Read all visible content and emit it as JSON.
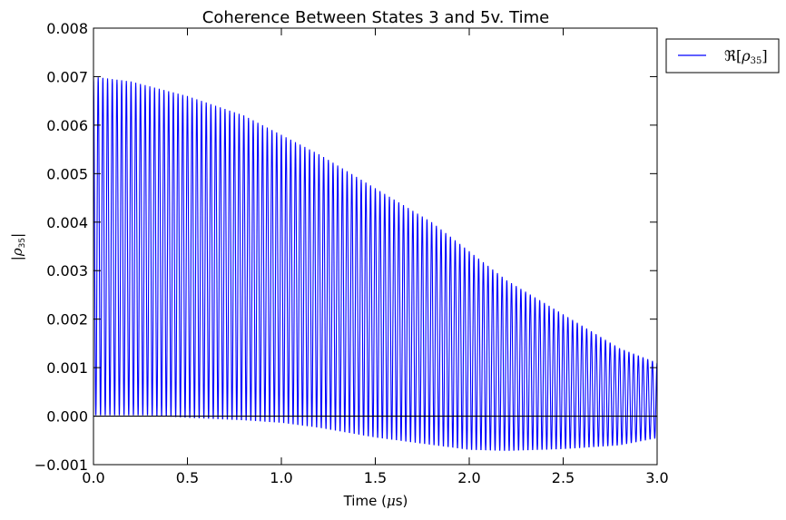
{
  "chart_data": {
    "type": "line",
    "title": "Coherence Between States 3 and 5v. Time",
    "xlabel": "Time (μs)",
    "ylabel": "|ρ35|",
    "xlim": [
      0.0,
      3.0
    ],
    "ylim": [
      -0.001,
      0.008
    ],
    "xticks": [
      0.0,
      0.5,
      1.0,
      1.5,
      2.0,
      2.5,
      3.0
    ],
    "xtick_labels": [
      "0.0",
      "0.5",
      "1.0",
      "1.5",
      "2.0",
      "2.5",
      "3.0"
    ],
    "yticks": [
      -0.001,
      0.0,
      0.001,
      0.002,
      0.003,
      0.004,
      0.005,
      0.006,
      0.007,
      0.008
    ],
    "ytick_labels": [
      "−0.001",
      "0.000",
      "0.001",
      "0.002",
      "0.003",
      "0.004",
      "0.005",
      "0.006",
      "0.007",
      "0.008"
    ],
    "grid": false,
    "legend_position": "outside-top-right",
    "series": [
      {
        "name": "ℜ[ρ35]",
        "color": "#0000ff",
        "oscillation_period": 0.025,
        "upper_envelope": {
          "x": [
            0.0,
            0.2,
            0.5,
            0.8,
            1.0,
            1.2,
            1.5,
            1.8,
            2.0,
            2.2,
            2.5,
            2.8,
            3.0
          ],
          "y": [
            0.007,
            0.0069,
            0.0066,
            0.0062,
            0.0058,
            0.0054,
            0.0047,
            0.004,
            0.0034,
            0.0028,
            0.0021,
            0.0014,
            0.0011
          ]
        },
        "lower_envelope": {
          "x": [
            0.0,
            0.3,
            0.5,
            0.8,
            1.0,
            1.2,
            1.5,
            1.8,
            2.0,
            2.2,
            2.5,
            2.8,
            3.0
          ],
          "y": [
            0.0,
            0.0,
            -5e-05,
            -0.0001,
            -0.00015,
            -0.00025,
            -0.00045,
            -0.0006,
            -0.0007,
            -0.00072,
            -0.00068,
            -0.0006,
            -0.00045
          ]
        }
      }
    ],
    "reference_line": {
      "y": 0.0,
      "color": "#000000"
    }
  }
}
